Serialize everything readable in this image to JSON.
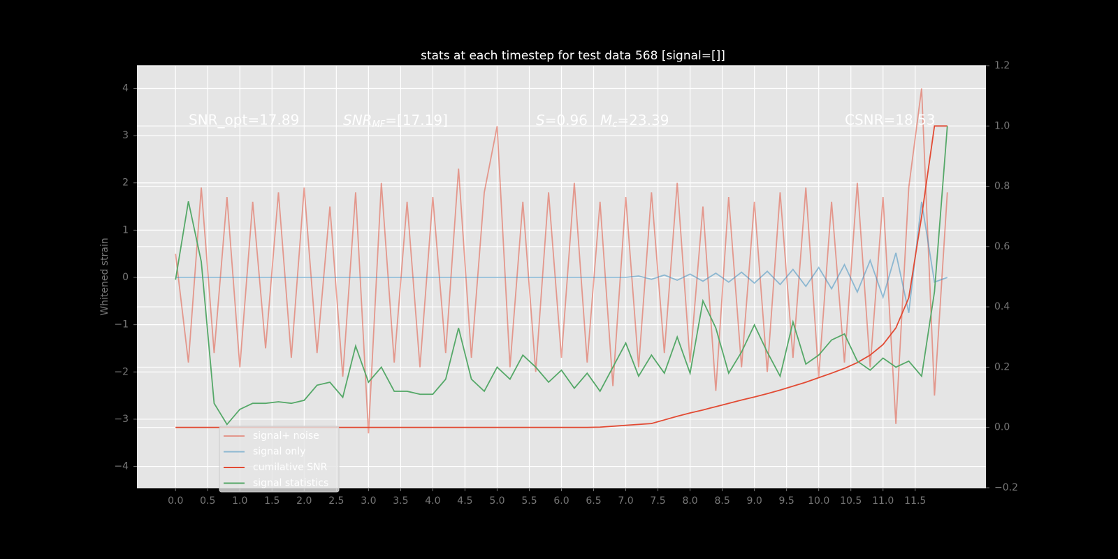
{
  "chart_data": {
    "type": "line",
    "title": "stats at each timestep for test data 568 [signal=[]]",
    "y_label": "Whitened strain",
    "annotations": [
      {
        "text": "SNR_opt=17.89"
      },
      {
        "base": "SNR",
        "sub": "MF",
        "text": "=[17.19]"
      },
      {
        "base": "S",
        "text": "=0.96"
      },
      {
        "base": "M",
        "sub": "c",
        "text": "=23.39"
      },
      {
        "text": "CSNR=18.53"
      }
    ],
    "x": [
      0,
      0.2,
      0.4,
      0.6,
      0.8,
      1.0,
      1.2,
      1.4,
      1.6,
      1.8,
      2.0,
      2.2,
      2.4,
      2.6,
      2.8,
      3.0,
      3.2,
      3.4,
      3.6,
      3.8,
      4.0,
      4.2,
      4.4,
      4.6,
      4.8,
      5.0,
      5.2,
      5.4,
      5.6,
      5.8,
      6.0,
      6.2,
      6.4,
      6.6,
      6.8,
      7.0,
      7.2,
      7.4,
      7.6,
      7.8,
      8.0,
      8.2,
      8.4,
      8.6,
      8.8,
      9.0,
      9.2,
      9.4,
      9.6,
      9.8,
      10.0,
      10.2,
      10.4,
      10.6,
      10.8,
      11.0,
      11.2,
      11.4,
      11.6,
      11.8,
      12.0
    ],
    "series": [
      {
        "name": "signal+ noise",
        "color": "#E24A33",
        "opacity": 0.5,
        "values": [
          0.5,
          -1.8,
          1.9,
          -1.6,
          1.7,
          -1.9,
          1.6,
          -1.5,
          1.8,
          -1.7,
          1.9,
          -1.6,
          1.5,
          -2.1,
          1.8,
          -3.3,
          2.0,
          -1.8,
          1.6,
          -1.9,
          1.7,
          -1.6,
          2.3,
          -1.7,
          1.8,
          3.2,
          -1.9,
          1.6,
          -2.0,
          1.8,
          -1.7,
          2.0,
          -1.8,
          1.6,
          -2.3,
          1.7,
          -1.9,
          1.8,
          -1.6,
          2.0,
          -1.8,
          1.5,
          -2.4,
          1.7,
          -1.9,
          1.6,
          -2.0,
          1.8,
          -1.7,
          1.9,
          -2.1,
          1.6,
          -1.8,
          2.0,
          -1.9,
          1.7,
          -3.1,
          1.9,
          4.0,
          -2.5,
          1.8
        ]
      },
      {
        "name": "signal only",
        "color": "#348ABD",
        "opacity": 0.5,
        "values": [
          0,
          0,
          0,
          0,
          0,
          0,
          0,
          0,
          0,
          0,
          0,
          0,
          0,
          0,
          0,
          0,
          0,
          0,
          0,
          0,
          0,
          0,
          0,
          0,
          0,
          0,
          0,
          0,
          0,
          0,
          0,
          0,
          0,
          0,
          0,
          0,
          0.03,
          -0.04,
          0.05,
          -0.06,
          0.07,
          -0.08,
          0.09,
          -0.1,
          0.11,
          -0.12,
          0.13,
          -0.15,
          0.17,
          -0.19,
          0.21,
          -0.24,
          0.27,
          -0.31,
          0.36,
          -0.42,
          0.52,
          -0.75,
          1.6,
          -0.1,
          0
        ]
      },
      {
        "name": "cumilative SNR",
        "color": "#E24A33",
        "opacity": 1,
        "axis": "y2",
        "values": [
          0,
          0,
          0,
          0,
          0,
          0,
          0,
          0,
          0,
          0,
          0,
          0,
          0,
          0,
          0,
          0,
          0,
          0,
          0,
          0,
          0,
          0,
          0,
          0,
          0,
          0,
          0,
          0,
          0,
          0,
          0,
          0,
          0,
          0.001,
          0.004,
          0.007,
          0.01,
          0.013,
          0.025,
          0.037,
          0.048,
          0.058,
          0.069,
          0.08,
          0.091,
          0.101,
          0.112,
          0.124,
          0.137,
          0.15,
          0.165,
          0.18,
          0.196,
          0.215,
          0.24,
          0.275,
          0.33,
          0.43,
          0.7,
          1.0,
          1.0
        ]
      },
      {
        "name": "signal statistics",
        "color": "#55A868",
        "opacity": 1,
        "axis": "y2",
        "values": [
          0.49,
          0.75,
          0.55,
          0.08,
          0.01,
          0.06,
          0.08,
          0.08,
          0.085,
          0.08,
          0.09,
          0.14,
          0.15,
          0.1,
          0.27,
          0.15,
          0.2,
          0.12,
          0.12,
          0.11,
          0.11,
          0.16,
          0.33,
          0.16,
          0.12,
          0.2,
          0.16,
          0.24,
          0.2,
          0.15,
          0.19,
          0.13,
          0.18,
          0.12,
          0.2,
          0.28,
          0.17,
          0.24,
          0.18,
          0.3,
          0.18,
          0.42,
          0.33,
          0.18,
          0.25,
          0.34,
          0.25,
          0.17,
          0.35,
          0.21,
          0.24,
          0.29,
          0.31,
          0.22,
          0.19,
          0.23,
          0.2,
          0.22,
          0.17,
          0.45,
          1.0
        ]
      }
    ],
    "xlim": [
      -0.6,
      12.6
    ],
    "xticks": [
      {
        "value": 0,
        "label": "0.0"
      },
      0.5,
      {
        "value": 1,
        "label": "1.0"
      },
      1.5,
      {
        "value": 2,
        "label": "2.0"
      },
      2.5,
      {
        "value": 3,
        "label": "3.0"
      },
      3.5,
      {
        "value": 4,
        "label": "4.0"
      },
      4.5,
      {
        "value": 5,
        "label": "5.0"
      },
      5.5,
      {
        "value": 6,
        "label": "6.0"
      },
      6.5,
      {
        "value": 7,
        "label": "7.0"
      },
      7.5,
      {
        "value": 8,
        "label": "8.0"
      },
      8.5,
      {
        "value": 9,
        "label": "9.0"
      },
      9.5,
      {
        "value": 10,
        "label": "10.0"
      },
      10.5,
      {
        "value": 11,
        "label": "11.0"
      },
      11.5
    ],
    "ylim": [
      -4.45,
      4.48
    ],
    "yticks": [
      {
        "value": -4,
        "label": "−4"
      },
      {
        "value": -3,
        "label": "−3"
      },
      {
        "value": -2,
        "label": "−2"
      },
      {
        "value": -1,
        "label": "−1"
      },
      0,
      1,
      2,
      3,
      4
    ],
    "y2lim": [
      -0.2,
      1.2
    ],
    "y2ticks": [
      {
        "value": -0.2,
        "label": "−0.2"
      },
      {
        "value": 0,
        "label": "0.0"
      },
      0.2,
      0.4,
      0.6,
      0.8,
      {
        "value": 1,
        "label": "1.0"
      },
      1.2
    ],
    "grid": true,
    "legend": "lower left"
  }
}
